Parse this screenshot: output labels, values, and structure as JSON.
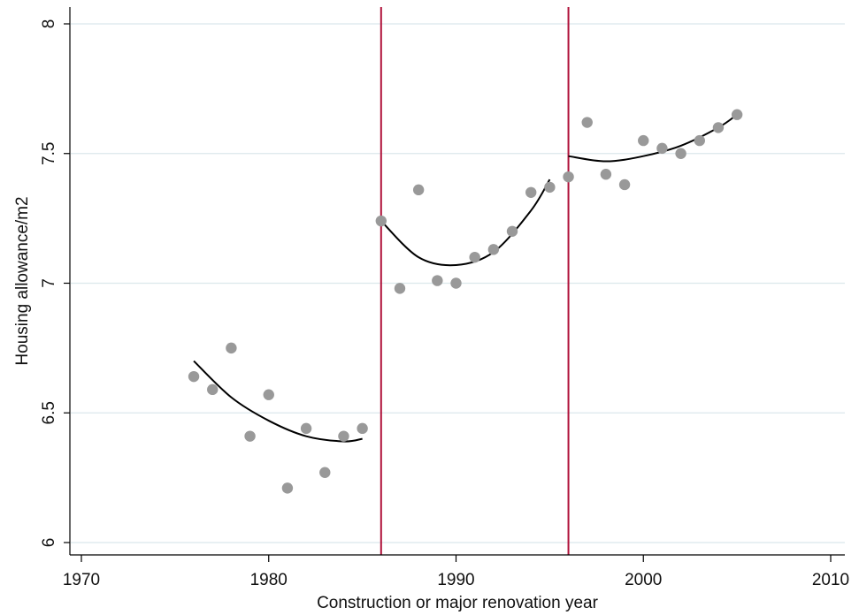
{
  "chart_data": {
    "type": "scatter",
    "title": "",
    "xlabel": "Construction or major renovation year",
    "ylabel": "Housing allowance/m2",
    "xlim": [
      1970,
      2010
    ],
    "ylim": [
      6,
      8
    ],
    "xticks": [
      1970,
      1980,
      1990,
      2000,
      2010
    ],
    "yticks": [
      6,
      6.5,
      7,
      7.5,
      8
    ],
    "xtick_labels": [
      "1970",
      "1980",
      "1990",
      "2000",
      "2010"
    ],
    "ytick_labels": [
      "6",
      "6.5",
      "7",
      "7.5",
      "8"
    ],
    "grid": "horizontal",
    "colors": {
      "points": "#999999",
      "fit": "#000000",
      "cutoff": "#b0123a",
      "grid": "#dbe8ec"
    },
    "points": [
      {
        "x": 1976,
        "y": 6.64
      },
      {
        "x": 1977,
        "y": 6.59
      },
      {
        "x": 1978,
        "y": 6.75
      },
      {
        "x": 1979,
        "y": 6.41
      },
      {
        "x": 1980,
        "y": 6.57
      },
      {
        "x": 1981,
        "y": 6.21
      },
      {
        "x": 1982,
        "y": 6.44
      },
      {
        "x": 1983,
        "y": 6.27
      },
      {
        "x": 1984,
        "y": 6.41
      },
      {
        "x": 1985,
        "y": 6.44
      },
      {
        "x": 1986,
        "y": 7.24
      },
      {
        "x": 1987,
        "y": 6.98
      },
      {
        "x": 1988,
        "y": 7.36
      },
      {
        "x": 1989,
        "y": 7.01
      },
      {
        "x": 1990,
        "y": 7.0
      },
      {
        "x": 1991,
        "y": 7.1
      },
      {
        "x": 1992,
        "y": 7.13
      },
      {
        "x": 1993,
        "y": 7.2
      },
      {
        "x": 1994,
        "y": 7.35
      },
      {
        "x": 1995,
        "y": 7.37
      },
      {
        "x": 1996,
        "y": 7.41
      },
      {
        "x": 1997,
        "y": 7.62
      },
      {
        "x": 1998,
        "y": 7.42
      },
      {
        "x": 1999,
        "y": 7.38
      },
      {
        "x": 2000,
        "y": 7.55
      },
      {
        "x": 2001,
        "y": 7.52
      },
      {
        "x": 2002,
        "y": 7.5
      },
      {
        "x": 2003,
        "y": 7.55
      },
      {
        "x": 2004,
        "y": 7.6
      },
      {
        "x": 2005,
        "y": 7.65
      }
    ],
    "fits": [
      {
        "x": [
          1976,
          1978,
          1980,
          1982,
          1984,
          1985
        ],
        "y": [
          6.7,
          6.56,
          6.47,
          6.41,
          6.39,
          6.4
        ]
      },
      {
        "x": [
          1986,
          1988,
          1990,
          1992,
          1994,
          1995
        ],
        "y": [
          7.24,
          7.1,
          7.07,
          7.12,
          7.28,
          7.4
        ]
      },
      {
        "x": [
          1996,
          1998,
          2000,
          2002,
          2004,
          2005
        ],
        "y": [
          7.49,
          7.47,
          7.49,
          7.53,
          7.6,
          7.65
        ]
      }
    ],
    "cutoffs": [
      1986,
      1996
    ]
  }
}
